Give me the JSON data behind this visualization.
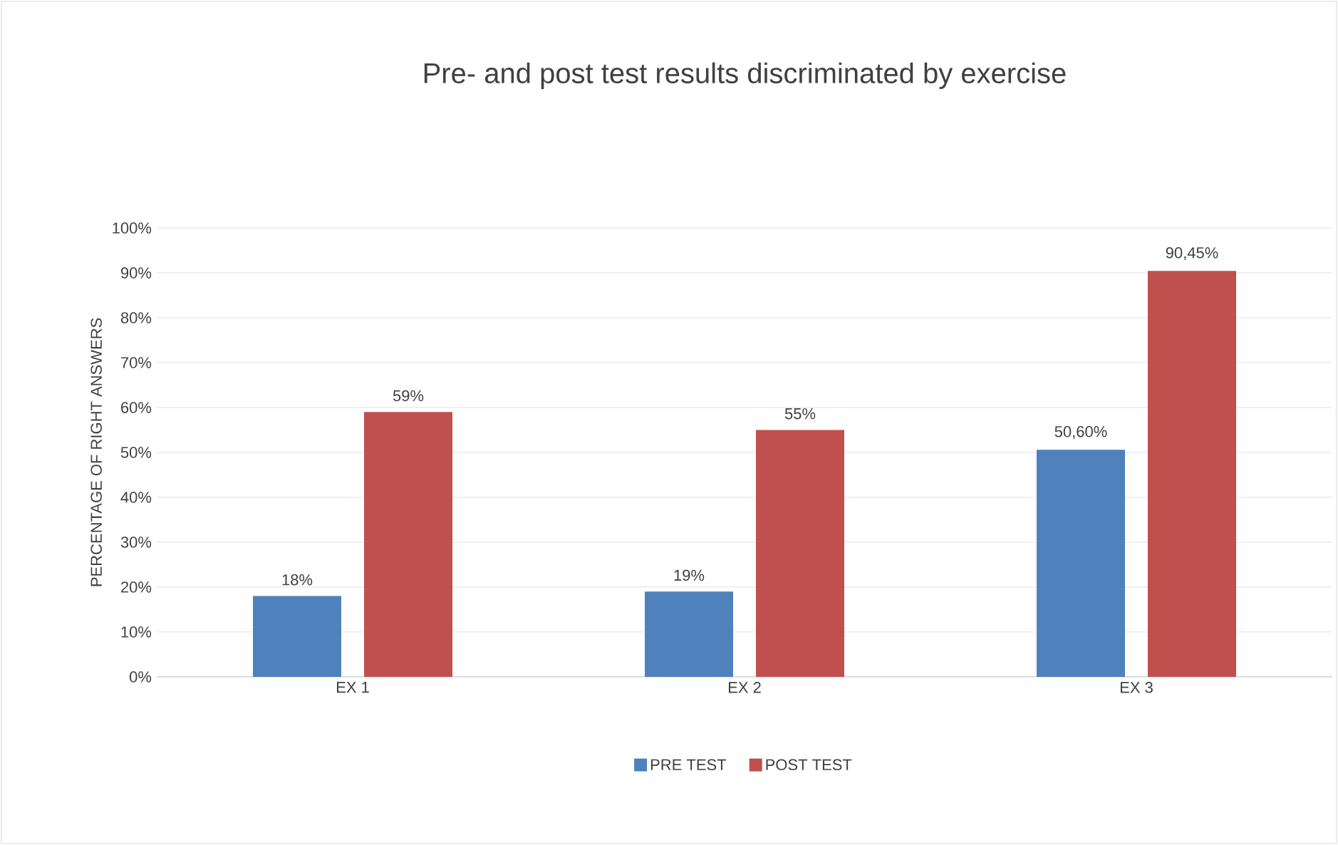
{
  "chart_data": {
    "type": "bar",
    "title": "Pre- and post test results discriminated by exercise",
    "ylabel": "PERCENTAGE OF RIGHT ANSWERS",
    "categories": [
      "EX 1",
      "EX 2",
      "EX 3"
    ],
    "series": [
      {
        "name": "PRE TEST",
        "color": "#4f81bd",
        "values": [
          18,
          19,
          50.6
        ],
        "value_labels": [
          "18%",
          "19%",
          "50,60%"
        ]
      },
      {
        "name": "POST TEST",
        "color": "#c0504d",
        "values": [
          59,
          55,
          90.45
        ],
        "value_labels": [
          "59%",
          "55%",
          "90,45%"
        ]
      }
    ],
    "ylim": [
      0,
      100
    ],
    "yticks": [
      {
        "value": 0,
        "label": "0%"
      },
      {
        "value": 10,
        "label": "10%"
      },
      {
        "value": 20,
        "label": "20%"
      },
      {
        "value": 30,
        "label": "30%"
      },
      {
        "value": 40,
        "label": "40%"
      },
      {
        "value": 50,
        "label": "50%"
      },
      {
        "value": 60,
        "label": "60%"
      },
      {
        "value": 70,
        "label": "70%"
      },
      {
        "value": 80,
        "label": "80%"
      },
      {
        "value": 90,
        "label": "90%"
      },
      {
        "value": 100,
        "label": "100%"
      }
    ],
    "grid": "y",
    "legend": "bottom"
  }
}
